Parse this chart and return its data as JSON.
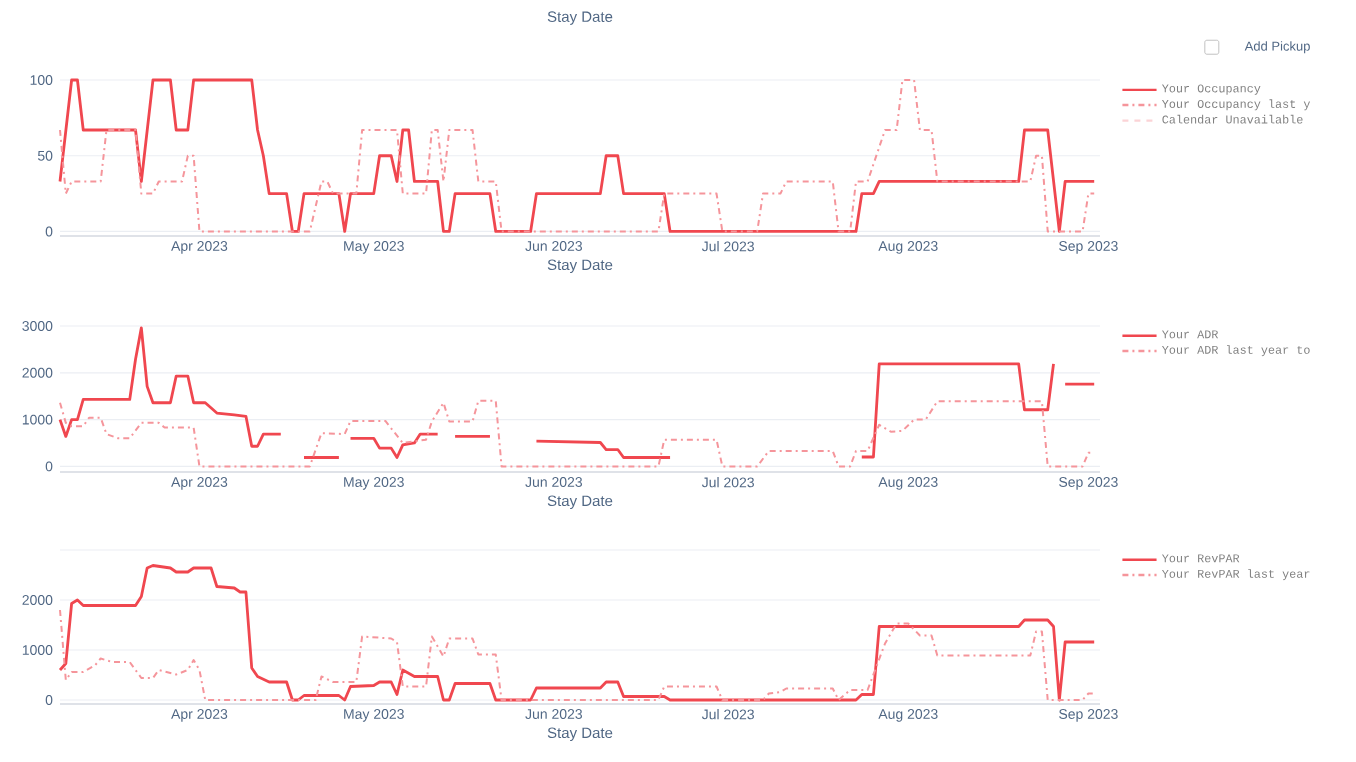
{
  "chart_data": [
    {
      "type": "line",
      "title": "Stay Date",
      "xlabel": "Stay Date",
      "annotations": [
        "Add Pickup"
      ],
      "grid": "y",
      "legend": "right",
      "xlim": [
        "2023-03-08",
        "2023-09-03"
      ],
      "xticks": [
        {
          "value": "2023-04-01",
          "label": "Apr 2023"
        },
        {
          "value": "2023-05-01",
          "label": "May 2023"
        },
        {
          "value": "2023-06-01",
          "label": "Jun 2023"
        },
        {
          "value": "2023-07-01",
          "label": "Jul 2023"
        },
        {
          "value": "2023-08-01",
          "label": "Aug 2023"
        },
        {
          "value": "2023-09-01",
          "label": "Sep 2023"
        }
      ],
      "ylim": [
        -3,
        100
      ],
      "yticks": [
        0,
        50,
        100
      ],
      "series": [
        {
          "name": "Your Occupancy",
          "color": "#f0474f",
          "line_style": "solid",
          "x": [
            "2023-03-08",
            "2023-03-10",
            "2023-03-11",
            "2023-03-12",
            "2023-03-21",
            "2023-03-22",
            "2023-03-24",
            "2023-03-27",
            "2023-03-28",
            "2023-03-30",
            "2023-03-31",
            "2023-04-10",
            "2023-04-11",
            "2023-04-12",
            "2023-04-13",
            "2023-04-16",
            "2023-04-17",
            "2023-04-18",
            "2023-04-19",
            "2023-04-25",
            "2023-04-26",
            "2023-04-27",
            "2023-05-01",
            "2023-05-02",
            "2023-05-04",
            "2023-05-05",
            "2023-05-06",
            "2023-05-07",
            "2023-05-08",
            "2023-05-12",
            "2023-05-13",
            "2023-05-14",
            "2023-05-15",
            "2023-05-21",
            "2023-05-22",
            "2023-05-28",
            "2023-05-29",
            "2023-06-09",
            "2023-06-10",
            "2023-06-12",
            "2023-06-13",
            "2023-06-20",
            "2023-06-21",
            "2023-07-23",
            "2023-07-24",
            "2023-07-26",
            "2023-07-27",
            "2023-08-20",
            "2023-08-21",
            "2023-08-25",
            "2023-08-27",
            "2023-08-28",
            "2023-09-02"
          ],
          "values": [
            33,
            100,
            100,
            67,
            67,
            33,
            100,
            100,
            67,
            67,
            100,
            100,
            67,
            50,
            25,
            25,
            0,
            0,
            25,
            25,
            0,
            25,
            25,
            50,
            50,
            33,
            67,
            67,
            33,
            33,
            0,
            0,
            25,
            25,
            0,
            0,
            25,
            25,
            50,
            50,
            25,
            25,
            0,
            0,
            25,
            25,
            33,
            33,
            67,
            67,
            0,
            33,
            33
          ]
        },
        {
          "name": "Your Occupancy last y",
          "color": "#f5959b",
          "line_style": "dashdot",
          "x": [
            "2023-03-08",
            "2023-03-09",
            "2023-03-10",
            "2023-03-15",
            "2023-03-16",
            "2023-03-21",
            "2023-03-22",
            "2023-03-24",
            "2023-03-25",
            "2023-03-29",
            "2023-03-30",
            "2023-03-31",
            "2023-04-01",
            "2023-04-20",
            "2023-04-22",
            "2023-04-23",
            "2023-04-24",
            "2023-04-28",
            "2023-04-29",
            "2023-05-05",
            "2023-05-06",
            "2023-05-10",
            "2023-05-11",
            "2023-05-12",
            "2023-05-13",
            "2023-05-14",
            "2023-05-18",
            "2023-05-19",
            "2023-05-22",
            "2023-05-23",
            "2023-06-19",
            "2023-06-20",
            "2023-06-29",
            "2023-06-30",
            "2023-07-06",
            "2023-07-07",
            "2023-07-10",
            "2023-07-11",
            "2023-07-19",
            "2023-07-20",
            "2023-07-22",
            "2023-07-23",
            "2023-07-25",
            "2023-07-28",
            "2023-07-30",
            "2023-07-31",
            "2023-08-02",
            "2023-08-03",
            "2023-08-05",
            "2023-08-06",
            "2023-08-22",
            "2023-08-23",
            "2023-08-24",
            "2023-08-25",
            "2023-08-31",
            "2023-09-01",
            "2023-09-02"
          ],
          "values": [
            67,
            25,
            33,
            33,
            67,
            67,
            25,
            25,
            33,
            33,
            50,
            50,
            0,
            0,
            33,
            33,
            25,
            25,
            67,
            67,
            25,
            25,
            67,
            67,
            33,
            67,
            67,
            33,
            33,
            0,
            0,
            25,
            25,
            0,
            0,
            25,
            25,
            33,
            33,
            0,
            0,
            33,
            33,
            67,
            67,
            100,
            100,
            67,
            67,
            33,
            33,
            50,
            50,
            0,
            0,
            25,
            25
          ]
        },
        {
          "name": "Calendar Unavailable",
          "color": "#fbd3d6",
          "line_style": "dashed"
        }
      ]
    },
    {
      "type": "line",
      "xlabel": "Stay Date",
      "grid": "y",
      "legend": "right",
      "xlim": [
        "2023-03-08",
        "2023-09-03"
      ],
      "xticks": [
        {
          "value": "2023-04-01",
          "label": "Apr 2023"
        },
        {
          "value": "2023-05-01",
          "label": "May 2023"
        },
        {
          "value": "2023-06-01",
          "label": "Jun 2023"
        },
        {
          "value": "2023-07-01",
          "label": "Jul 2023"
        },
        {
          "value": "2023-08-01",
          "label": "Aug 2023"
        },
        {
          "value": "2023-09-01",
          "label": "Sep 2023"
        }
      ],
      "ylim": [
        -120,
        3000
      ],
      "yticks": [
        0,
        1000,
        2000,
        3000
      ],
      "series": [
        {
          "name": "Your ADR",
          "color": "#f0474f",
          "line_style": "solid",
          "x": [
            "2023-03-08",
            "2023-03-09",
            "2023-03-10",
            "2023-03-11",
            "2023-03-12",
            "2023-03-20",
            "2023-03-21",
            "2023-03-22",
            "2023-03-23",
            "2023-03-24",
            "2023-03-27",
            "2023-03-28",
            "2023-03-30",
            "2023-03-31",
            "2023-04-02",
            "2023-04-04",
            "2023-04-07",
            "2023-04-09",
            "2023-04-10",
            "2023-04-11",
            "2023-04-12",
            "2023-04-15",
            "2023-04-17",
            "2023-04-19",
            "2023-04-25",
            "2023-04-26",
            "2023-04-27",
            "2023-05-01",
            "2023-05-02",
            "2023-05-04",
            "2023-05-05",
            "2023-05-06",
            "2023-05-08",
            "2023-05-09",
            "2023-05-12",
            "2023-05-13",
            "2023-05-15",
            "2023-05-21",
            "2023-05-25",
            "2023-05-29",
            "2023-06-09",
            "2023-06-10",
            "2023-06-12",
            "2023-06-13",
            "2023-06-19",
            "2023-06-21",
            "2023-07-10",
            "2023-07-24",
            "2023-07-26",
            "2023-07-27",
            "2023-08-20",
            "2023-08-21",
            "2023-08-25",
            "2023-08-26",
            "2023-08-27",
            "2023-08-28",
            "2023-09-02"
          ],
          "values": [
            1000,
            640,
            1000,
            1000,
            1430,
            1430,
            2290,
            2960,
            1710,
            1360,
            1360,
            1930,
            1930,
            1360,
            1360,
            1140,
            1100,
            1070,
            430,
            430,
            690,
            690,
            null,
            190,
            190,
            null,
            600,
            600,
            390,
            390,
            190,
            460,
            500,
            690,
            690,
            null,
            640,
            640,
            null,
            540,
            510,
            360,
            360,
            190,
            190,
            190,
            null,
            200,
            200,
            2190,
            2190,
            1210,
            1210,
            2190,
            null,
            1760,
            1760
          ]
        },
        {
          "name": "Your ADR last year to",
          "color": "#f5959b",
          "line_style": "dashdot",
          "x": [
            "2023-03-08",
            "2023-03-09",
            "2023-03-10",
            "2023-03-12",
            "2023-03-13",
            "2023-03-15",
            "2023-03-16",
            "2023-03-18",
            "2023-03-20",
            "2023-03-22",
            "2023-03-25",
            "2023-03-26",
            "2023-03-31",
            "2023-04-01",
            "2023-04-20",
            "2023-04-22",
            "2023-04-26",
            "2023-04-27",
            "2023-05-03",
            "2023-05-06",
            "2023-05-10",
            "2023-05-11",
            "2023-05-13",
            "2023-05-14",
            "2023-05-18",
            "2023-05-19",
            "2023-05-22",
            "2023-05-23",
            "2023-06-19",
            "2023-06-20",
            "2023-06-29",
            "2023-06-30",
            "2023-07-06",
            "2023-07-08",
            "2023-07-19",
            "2023-07-20",
            "2023-07-22",
            "2023-07-23",
            "2023-07-25",
            "2023-07-27",
            "2023-07-29",
            "2023-07-31",
            "2023-08-02",
            "2023-08-04",
            "2023-08-06",
            "2023-08-24",
            "2023-08-25",
            "2023-08-31",
            "2023-09-01",
            "2023-09-02"
          ],
          "values": [
            1360,
            930,
            860,
            860,
            1040,
            1040,
            690,
            600,
            600,
            930,
            930,
            830,
            830,
            0,
            0,
            710,
            690,
            970,
            970,
            500,
            570,
            960,
            1360,
            960,
            960,
            1400,
            1400,
            0,
            0,
            570,
            570,
            0,
            0,
            330,
            330,
            0,
            0,
            330,
            330,
            890,
            740,
            760,
            1000,
            1000,
            1390,
            1390,
            0,
            0,
            290,
            290
          ]
        }
      ]
    },
    {
      "type": "line",
      "xlabel": "Stay Date",
      "grid": "y",
      "legend": "right",
      "xlim": [
        "2023-03-08",
        "2023-09-03"
      ],
      "xticks": [
        {
          "value": "2023-04-01",
          "label": "Apr 2023"
        },
        {
          "value": "2023-05-01",
          "label": "May 2023"
        },
        {
          "value": "2023-06-01",
          "label": "Jun 2023"
        },
        {
          "value": "2023-07-01",
          "label": "Jul 2023"
        },
        {
          "value": "2023-08-01",
          "label": "Aug 2023"
        },
        {
          "value": "2023-09-01",
          "label": "Sep 2023"
        }
      ],
      "ylim": [
        -80,
        3000
      ],
      "yticks": [
        0,
        1000,
        2000,
        {
          "value": 3000,
          "label": null
        }
      ],
      "series": [
        {
          "name": "Your RevPAR",
          "color": "#f0474f",
          "line_style": "solid",
          "x": [
            "2023-03-08",
            "2023-03-09",
            "2023-03-10",
            "2023-03-11",
            "2023-03-12",
            "2023-03-21",
            "2023-03-22",
            "2023-03-23",
            "2023-03-24",
            "2023-03-27",
            "2023-03-28",
            "2023-03-30",
            "2023-03-31",
            "2023-04-03",
            "2023-04-04",
            "2023-04-07",
            "2023-04-08",
            "2023-04-09",
            "2023-04-10",
            "2023-04-11",
            "2023-04-13",
            "2023-04-16",
            "2023-04-17",
            "2023-04-18",
            "2023-04-19",
            "2023-04-25",
            "2023-04-26",
            "2023-04-27",
            "2023-05-01",
            "2023-05-02",
            "2023-05-04",
            "2023-05-05",
            "2023-05-06",
            "2023-05-08",
            "2023-05-12",
            "2023-05-13",
            "2023-05-14",
            "2023-05-15",
            "2023-05-21",
            "2023-05-22",
            "2023-05-28",
            "2023-05-29",
            "2023-06-09",
            "2023-06-10",
            "2023-06-12",
            "2023-06-13",
            "2023-06-20",
            "2023-06-21",
            "2023-07-23",
            "2023-07-24",
            "2023-07-26",
            "2023-07-27",
            "2023-08-20",
            "2023-08-21",
            "2023-08-25",
            "2023-08-26",
            "2023-08-27",
            "2023-08-28",
            "2023-09-02"
          ],
          "values": [
            600,
            730,
            1930,
            2000,
            1890,
            1890,
            2070,
            2640,
            2690,
            2640,
            2560,
            2560,
            2640,
            2640,
            2270,
            2240,
            2160,
            2160,
            640,
            470,
            360,
            360,
            0,
            0,
            90,
            90,
            0,
            270,
            290,
            360,
            360,
            110,
            600,
            470,
            470,
            0,
            0,
            330,
            330,
            0,
            0,
            240,
            240,
            360,
            360,
            70,
            70,
            0,
            0,
            110,
            110,
            1470,
            1470,
            1600,
            1600,
            1470,
            0,
            1160,
            1160
          ]
        },
        {
          "name": "Your RevPAR last year",
          "color": "#f5959b",
          "line_style": "dashdot",
          "x": [
            "2023-03-08",
            "2023-03-09",
            "2023-03-10",
            "2023-03-12",
            "2023-03-14",
            "2023-03-15",
            "2023-03-17",
            "2023-03-20",
            "2023-03-22",
            "2023-03-24",
            "2023-03-25",
            "2023-03-28",
            "2023-03-30",
            "2023-03-31",
            "2023-04-01",
            "2023-04-02",
            "2023-04-21",
            "2023-04-22",
            "2023-04-24",
            "2023-04-28",
            "2023-04-29",
            "2023-05-04",
            "2023-05-05",
            "2023-05-06",
            "2023-05-10",
            "2023-05-11",
            "2023-05-13",
            "2023-05-14",
            "2023-05-18",
            "2023-05-19",
            "2023-05-22",
            "2023-05-23",
            "2023-06-19",
            "2023-06-20",
            "2023-06-29",
            "2023-06-30",
            "2023-07-07",
            "2023-07-08",
            "2023-07-10",
            "2023-07-11",
            "2023-07-19",
            "2023-07-20",
            "2023-07-22",
            "2023-07-25",
            "2023-07-28",
            "2023-07-30",
            "2023-08-01",
            "2023-08-03",
            "2023-08-05",
            "2023-08-06",
            "2023-08-22",
            "2023-08-23",
            "2023-08-24",
            "2023-08-25",
            "2023-08-31",
            "2023-09-01",
            "2023-09-02"
          ],
          "values": [
            1800,
            400,
            560,
            560,
            690,
            830,
            760,
            760,
            440,
            440,
            600,
            510,
            600,
            800,
            600,
            0,
            0,
            470,
            360,
            360,
            1270,
            1230,
            1160,
            270,
            270,
            1270,
            870,
            1230,
            1230,
            910,
            910,
            0,
            0,
            270,
            270,
            0,
            0,
            130,
            160,
            230,
            230,
            0,
            200,
            200,
            1130,
            1530,
            1530,
            1290,
            1290,
            890,
            890,
            1370,
            1370,
            0,
            0,
            130,
            130
          ]
        }
      ]
    }
  ]
}
